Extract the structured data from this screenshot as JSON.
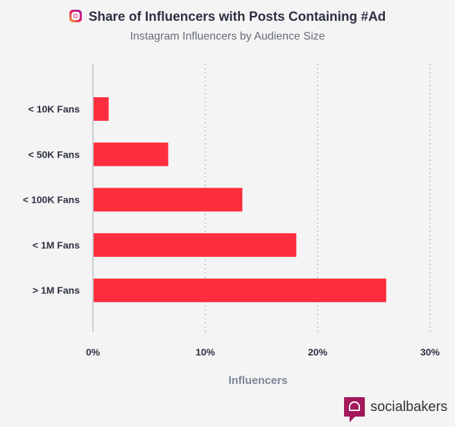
{
  "chart_data": {
    "type": "bar",
    "orientation": "horizontal",
    "title": "Share of Influencers with Posts Containing #Ad",
    "subtitle": "Instagram Influencers by Audience Size",
    "categories": [
      "< 10K Fans",
      "< 50K Fans",
      "< 100K Fans",
      "< 1M Fans",
      "> 1M Fans"
    ],
    "values": [
      1.4,
      6.7,
      13.3,
      18.1,
      26.1
    ],
    "xlabel": "Influencers",
    "xlim": [
      0,
      30
    ],
    "xticks": [
      "0%",
      "10%",
      "20%",
      "30%"
    ],
    "grid": true,
    "bar_color": "#ff2e3e"
  },
  "brand": {
    "title_icon": "instagram-icon",
    "logo_text": "socialbakers",
    "logo_color": "#a3195b"
  }
}
